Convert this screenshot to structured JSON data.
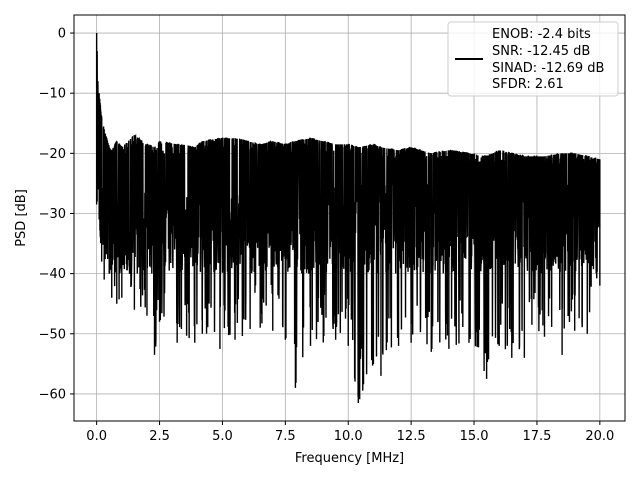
{
  "chart_data": {
    "type": "line",
    "title": "",
    "xlabel": "Frequency [MHz]",
    "ylabel": "PSD [dB]",
    "xlim": [
      -0.9,
      21.0
    ],
    "ylim": [
      -64.5,
      3.0
    ],
    "xticks": [
      0.0,
      2.5,
      5.0,
      7.5,
      10.0,
      12.5,
      15.0,
      17.5,
      20.0
    ],
    "xtick_labels": [
      "0.0",
      "2.5",
      "5.0",
      "7.5",
      "10.0",
      "12.5",
      "15.0",
      "17.5",
      "20.0"
    ],
    "yticks": [
      0,
      -10,
      -20,
      -30,
      -40,
      -50,
      -60
    ],
    "ytick_labels": [
      "0",
      "−10",
      "−20",
      "−30",
      "−40",
      "−50",
      "−60"
    ],
    "grid": true,
    "legend_position": "top-right",
    "legend_lines": [
      "ENOB: -2.4 bits",
      "SNR: -12.45 dB",
      "SINAD: -12.69 dB",
      "SFDR: 2.61"
    ],
    "series": [
      {
        "color": "#000000",
        "x": [
          0.0,
          0.02,
          0.05,
          0.1,
          0.15,
          0.2,
          0.3,
          0.4,
          0.5,
          0.6,
          0.8,
          1.0,
          1.5,
          2.0,
          2.3,
          2.5,
          3.2,
          3.9,
          4.2,
          4.9,
          5.5,
          6.5,
          7.0,
          7.5,
          7.9,
          8.5,
          9.5,
          10.0,
          10.4,
          11.0,
          11.3,
          12.0,
          12.5,
          13.3,
          14.0,
          14.8,
          15.5,
          16.0,
          16.5,
          17.0,
          17.3,
          17.8,
          18.5,
          19.0,
          19.5,
          20.0
        ],
        "peaks": [
          0.0,
          -3.0,
          -8.0,
          -10.0,
          -12.0,
          -14.0,
          -16.0,
          -17.5,
          -19.0,
          -19.5,
          -18.0,
          -19.0,
          -17.0,
          -18.5,
          -19.0,
          -18.0,
          -18.5,
          -19.0,
          -18.0,
          -17.5,
          -17.5,
          -18.5,
          -18.0,
          -18.5,
          -18.0,
          -17.5,
          -18.5,
          -18.5,
          -19.0,
          -18.5,
          -19.0,
          -19.5,
          -19.0,
          -20.0,
          -19.5,
          -20.0,
          -20.5,
          -19.5,
          -20.0,
          -20.5,
          -20.5,
          -20.5,
          -20.0,
          -20.0,
          -20.5,
          -21.0
        ],
        "troughs": [
          -28.5,
          -28.0,
          -26.0,
          -31.0,
          -34.0,
          -38.0,
          -41.0,
          -36.0,
          -40.0,
          -44.0,
          -45.0,
          -44.0,
          -46.0,
          -47.0,
          -53.5,
          -48.0,
          -51.5,
          -51.5,
          -50.0,
          -52.5,
          -51.0,
          -49.0,
          -49.5,
          -51.0,
          -59.0,
          -52.0,
          -51.0,
          -52.0,
          -61.5,
          -55.0,
          -57.0,
          -52.0,
          -51.5,
          -53.0,
          -52.5,
          -51.5,
          -57.5,
          -52.0,
          -54.0,
          -54.0,
          -48.5,
          -50.5,
          -53.5,
          -49.5,
          -50.0,
          -42.0
        ],
        "mean_level": -28.0
      }
    ]
  }
}
